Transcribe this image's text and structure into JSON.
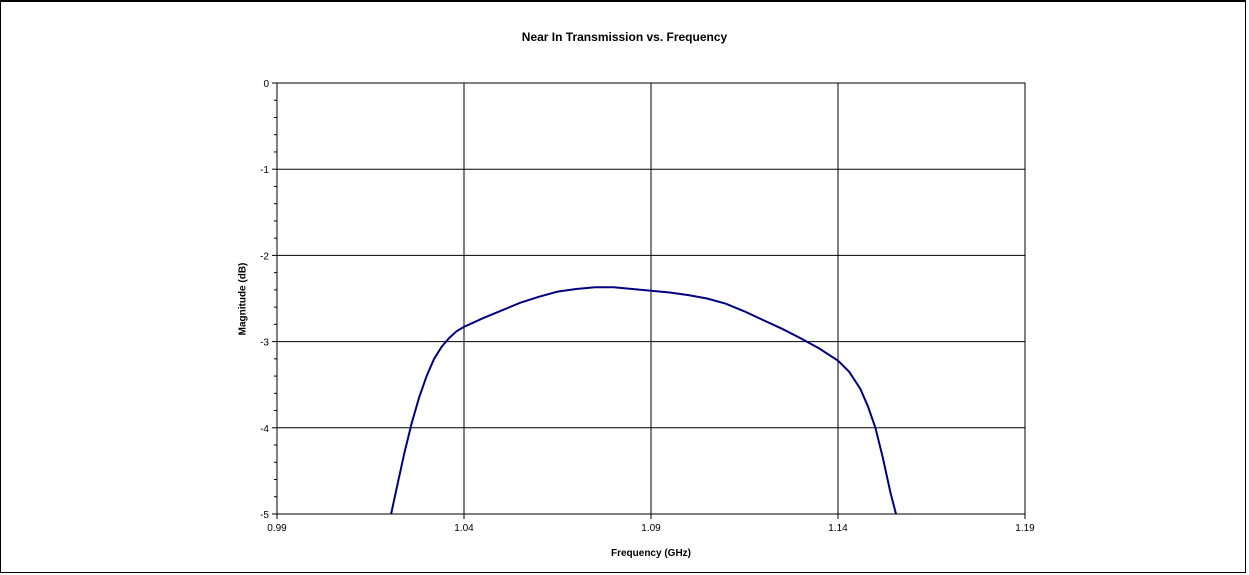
{
  "chart_data": {
    "type": "line",
    "title": "Near In Transmission vs. Frequency",
    "xlabel": "Frequency (GHz)",
    "ylabel": "Magnitude (dB)",
    "xlim": [
      0.99,
      1.19
    ],
    "ylim": [
      -5,
      0
    ],
    "x_ticks": [
      "0.99",
      "1.04",
      "1.09",
      "1.14",
      "1.19"
    ],
    "y_ticks": [
      "0",
      "-1",
      "-2",
      "-3",
      "-4",
      "-5"
    ],
    "grid": true,
    "legend": "none",
    "series": [
      {
        "color": "#000080",
        "points": [
          [
            1.0205,
            -5.0
          ],
          [
            1.022,
            -4.7
          ],
          [
            1.024,
            -4.3
          ],
          [
            1.026,
            -3.95
          ],
          [
            1.028,
            -3.65
          ],
          [
            1.03,
            -3.4
          ],
          [
            1.032,
            -3.2
          ],
          [
            1.034,
            -3.06
          ],
          [
            1.036,
            -2.96
          ],
          [
            1.038,
            -2.88
          ],
          [
            1.04,
            -2.83
          ],
          [
            1.045,
            -2.73
          ],
          [
            1.05,
            -2.64
          ],
          [
            1.055,
            -2.55
          ],
          [
            1.06,
            -2.48
          ],
          [
            1.065,
            -2.42
          ],
          [
            1.07,
            -2.39
          ],
          [
            1.075,
            -2.37
          ],
          [
            1.08,
            -2.37
          ],
          [
            1.085,
            -2.39
          ],
          [
            1.09,
            -2.41
          ],
          [
            1.095,
            -2.43
          ],
          [
            1.1,
            -2.46
          ],
          [
            1.105,
            -2.5
          ],
          [
            1.11,
            -2.56
          ],
          [
            1.115,
            -2.65
          ],
          [
            1.12,
            -2.75
          ],
          [
            1.125,
            -2.85
          ],
          [
            1.13,
            -2.96
          ],
          [
            1.135,
            -3.08
          ],
          [
            1.14,
            -3.22
          ],
          [
            1.143,
            -3.35
          ],
          [
            1.146,
            -3.55
          ],
          [
            1.148,
            -3.75
          ],
          [
            1.15,
            -4.0
          ],
          [
            1.152,
            -4.35
          ],
          [
            1.154,
            -4.75
          ],
          [
            1.1555,
            -5.0
          ]
        ]
      }
    ]
  }
}
